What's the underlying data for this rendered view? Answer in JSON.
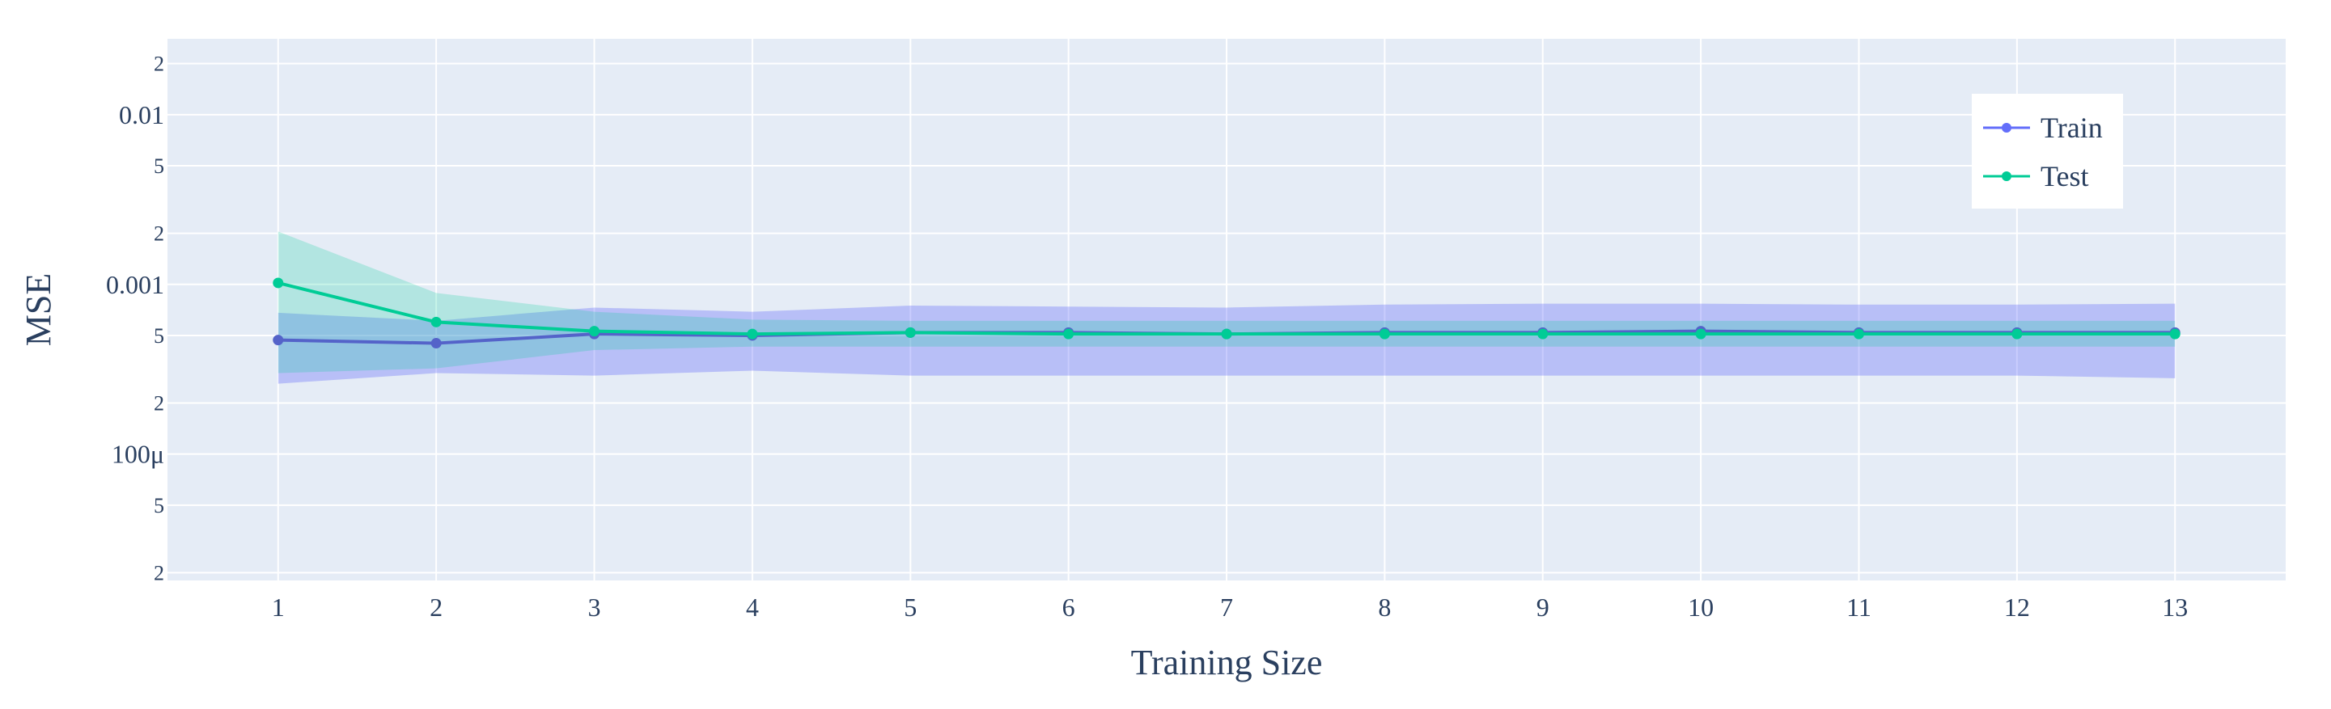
{
  "chart_data": {
    "type": "line",
    "xlabel": "Training Size",
    "ylabel": "MSE",
    "x": [
      1,
      2,
      3,
      4,
      5,
      6,
      7,
      8,
      9,
      10,
      11,
      12,
      13
    ],
    "xlim": [
      0.3,
      13.7
    ],
    "yscale": "log",
    "ylim": [
      1.8e-05,
      0.028
    ],
    "grid": true,
    "legend_position": "top-right",
    "y_major_ticks": [
      {
        "value": 0.0001,
        "label": "100μ"
      },
      {
        "value": 0.001,
        "label": "0.001"
      },
      {
        "value": 0.01,
        "label": "0.01"
      }
    ],
    "y_minor_ticks": [
      {
        "value": 2e-05,
        "label": "2"
      },
      {
        "value": 5e-05,
        "label": "5"
      },
      {
        "value": 0.0002,
        "label": "2"
      },
      {
        "value": 0.0005,
        "label": "5"
      },
      {
        "value": 0.002,
        "label": "2"
      },
      {
        "value": 0.005,
        "label": "5"
      },
      {
        "value": 0.02,
        "label": "2"
      }
    ],
    "series": [
      {
        "name": "Train",
        "color": "#5463c9",
        "band_color": "rgba(99,110,250,0.35)",
        "values": [
          0.00047,
          0.00045,
          0.00051,
          0.0005,
          0.00052,
          0.00052,
          0.00051,
          0.00052,
          0.00052,
          0.00053,
          0.00052,
          0.00052,
          0.00052
        ],
        "lower": [
          0.00026,
          0.0003,
          0.00029,
          0.00031,
          0.00029,
          0.00029,
          0.00029,
          0.00029,
          0.00029,
          0.00029,
          0.00029,
          0.00029,
          0.00028
        ],
        "upper": [
          0.00068,
          0.00061,
          0.00073,
          0.00069,
          0.00075,
          0.00074,
          0.00073,
          0.00076,
          0.00077,
          0.00077,
          0.00076,
          0.00076,
          0.00077
        ]
      },
      {
        "name": "Test",
        "color": "#00cc96",
        "band_color": "rgba(0,204,150,0.22)",
        "values": [
          0.00102,
          0.0006,
          0.00053,
          0.00051,
          0.00052,
          0.00051,
          0.00051,
          0.00051,
          0.00051,
          0.00051,
          0.00051,
          0.00051,
          0.00051
        ],
        "lower": [
          0.0003,
          0.00032,
          0.00041,
          0.00043,
          0.00043,
          0.00043,
          0.00043,
          0.00043,
          0.00043,
          0.00043,
          0.00043,
          0.00043,
          0.00043
        ],
        "upper": [
          0.00205,
          0.00089,
          0.00069,
          0.00062,
          0.00061,
          0.00061,
          0.00061,
          0.00061,
          0.00061,
          0.00061,
          0.00061,
          0.00061,
          0.00061
        ]
      }
    ]
  }
}
